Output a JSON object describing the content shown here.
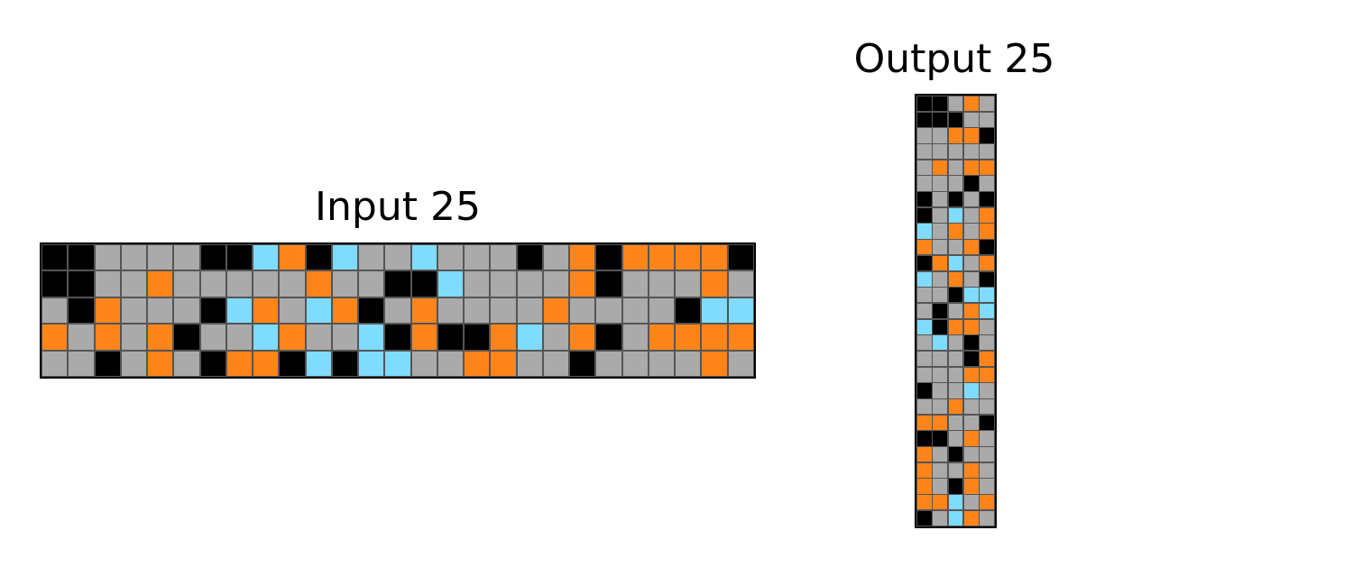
{
  "input_title": "Input 25",
  "output_title": "Output 25",
  "palette": {
    "0": "#000000",
    "5": "#AAAAAA",
    "7": "#FF851B",
    "8": "#7FDBFF"
  },
  "input_grid": [
    [
      0,
      0,
      5,
      5,
      5,
      5,
      0,
      0,
      8,
      7,
      0,
      8,
      5,
      5,
      8,
      5,
      5,
      5,
      0,
      5,
      7,
      0,
      7,
      7,
      7,
      7,
      0
    ],
    [
      0,
      0,
      5,
      5,
      7,
      5,
      5,
      5,
      5,
      5,
      7,
      5,
      5,
      0,
      0,
      8,
      5,
      5,
      5,
      5,
      7,
      0,
      5,
      5,
      5,
      7,
      5
    ],
    [
      5,
      0,
      7,
      5,
      5,
      5,
      0,
      8,
      7,
      5,
      8,
      7,
      0,
      5,
      7,
      5,
      5,
      5,
      5,
      7,
      5,
      5,
      5,
      5,
      0,
      8,
      8
    ],
    [
      7,
      5,
      7,
      5,
      7,
      0,
      5,
      5,
      8,
      7,
      5,
      5,
      8,
      0,
      7,
      0,
      0,
      7,
      8,
      5,
      7,
      0,
      5,
      7,
      7,
      7,
      7
    ],
    [
      5,
      5,
      0,
      5,
      7,
      5,
      0,
      7,
      7,
      0,
      8,
      0,
      8,
      8,
      5,
      5,
      7,
      7,
      5,
      5,
      0,
      5,
      5,
      5,
      5,
      7,
      5
    ]
  ],
  "output_grid": [
    [
      0,
      0,
      5,
      7,
      5
    ],
    [
      0,
      0,
      0,
      5,
      5
    ],
    [
      5,
      5,
      7,
      7,
      0
    ],
    [
      5,
      5,
      5,
      5,
      5
    ],
    [
      5,
      7,
      5,
      7,
      7
    ],
    [
      5,
      5,
      5,
      0,
      5
    ],
    [
      0,
      5,
      0,
      5,
      0
    ],
    [
      0,
      5,
      8,
      5,
      7
    ],
    [
      8,
      5,
      7,
      5,
      7
    ],
    [
      7,
      5,
      5,
      7,
      0
    ],
    [
      0,
      7,
      8,
      5,
      7
    ],
    [
      8,
      5,
      7,
      5,
      0
    ],
    [
      5,
      5,
      0,
      8,
      8
    ],
    [
      5,
      0,
      5,
      7,
      8
    ],
    [
      8,
      0,
      7,
      7,
      5
    ],
    [
      5,
      8,
      5,
      0,
      5
    ],
    [
      5,
      5,
      5,
      0,
      7
    ],
    [
      5,
      5,
      5,
      7,
      7
    ],
    [
      0,
      5,
      5,
      8,
      5
    ],
    [
      5,
      5,
      7,
      5,
      5
    ],
    [
      7,
      7,
      5,
      5,
      0
    ],
    [
      0,
      0,
      5,
      7,
      5
    ],
    [
      7,
      5,
      0,
      5,
      5
    ],
    [
      7,
      5,
      5,
      7,
      5
    ],
    [
      7,
      5,
      0,
      7,
      5
    ],
    [
      7,
      7,
      8,
      5,
      7
    ],
    [
      0,
      5,
      8,
      7,
      5
    ]
  ]
}
